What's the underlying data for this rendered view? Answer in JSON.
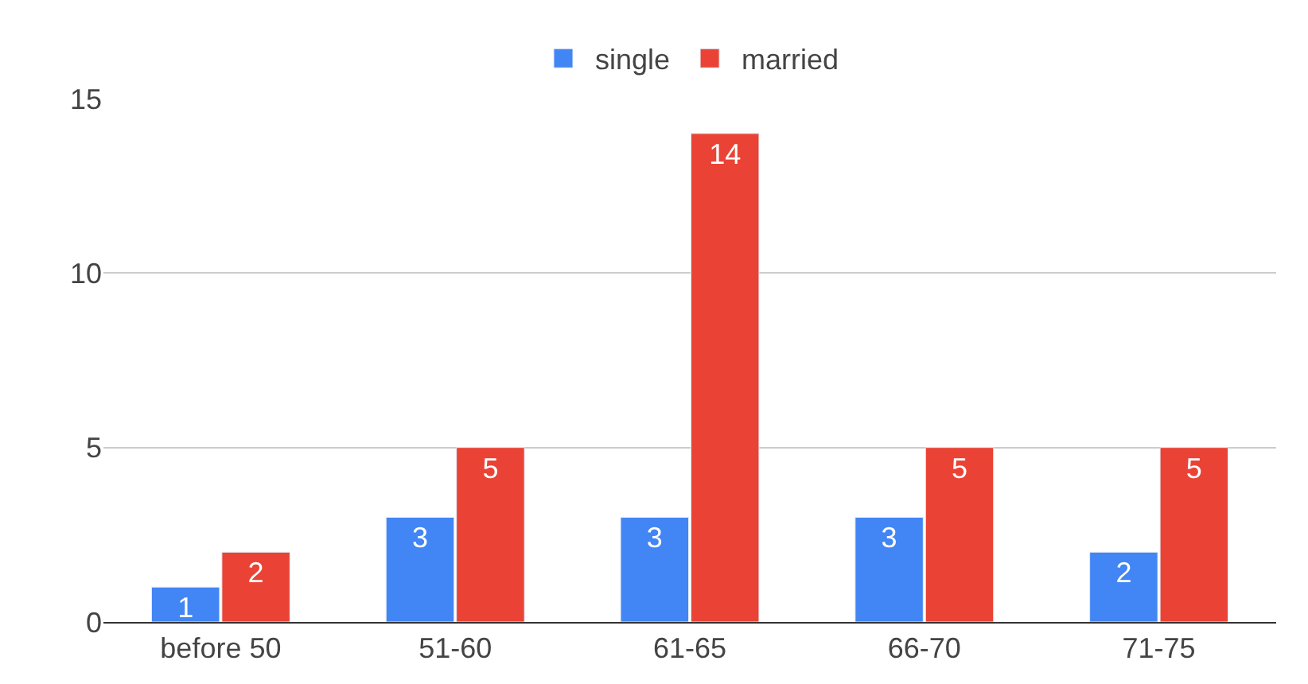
{
  "chart_data": {
    "type": "bar",
    "categories": [
      "before 50",
      "51-60",
      "61-65",
      "66-70",
      "71-75"
    ],
    "series": [
      {
        "name": "single",
        "color": "#4285f4",
        "values": [
          1,
          3,
          3,
          3,
          2
        ]
      },
      {
        "name": "married",
        "color": "#ea4335",
        "values": [
          2,
          5,
          14,
          5,
          5
        ]
      }
    ],
    "ylim": [
      0,
      15
    ],
    "yticks": [
      0,
      5,
      10,
      15
    ],
    "grid": "y",
    "legend": "top",
    "data_labels": true
  }
}
